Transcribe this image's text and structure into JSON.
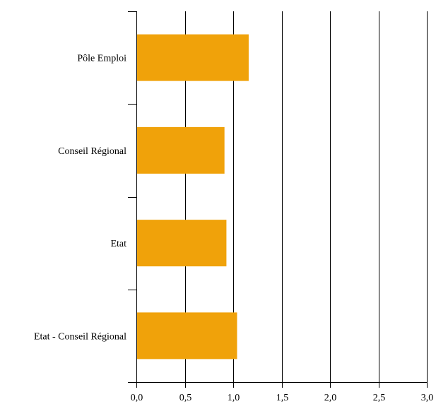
{
  "chart_data": {
    "type": "bar",
    "orientation": "horizontal",
    "categories": [
      "Pôle Emploi",
      "Conseil Régional",
      "Etat",
      "Etat - Conseil Régional"
    ],
    "values": [
      1.16,
      0.91,
      0.93,
      1.04
    ],
    "xlim": [
      0,
      3.0
    ],
    "xticks": [
      0,
      0.5,
      1.0,
      1.5,
      2.0,
      2.5,
      3.0
    ],
    "xtick_labels": [
      "0,0",
      "0,5",
      "1,0",
      "1,5",
      "2,0",
      "2,5",
      "3,0"
    ],
    "grid": "vertical",
    "bar_color": "#f0a20a",
    "axis_color": "#000000"
  }
}
